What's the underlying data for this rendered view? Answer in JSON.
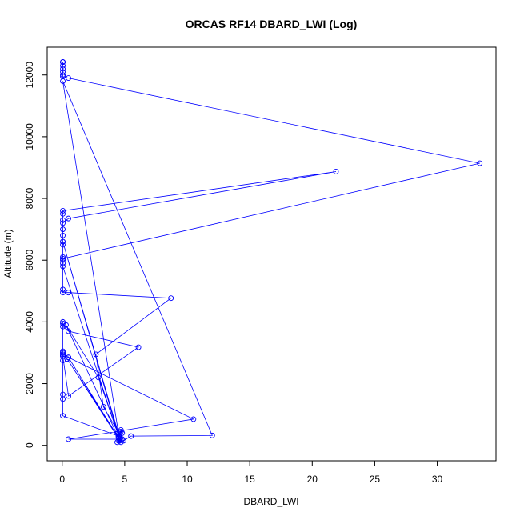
{
  "chart_data": {
    "type": "line",
    "title": "ORCAS RF14 DBARD_LWI (Log)",
    "xlabel": "DBARD_LWI",
    "ylabel": "Altitude (m)",
    "xlim": [
      -1.2,
      34.7
    ],
    "ylim": [
      -500,
      12900
    ],
    "xticks": [
      0,
      5,
      10,
      15,
      20,
      25,
      30
    ],
    "yticks": [
      0,
      2000,
      4000,
      6000,
      8000,
      10000,
      12000
    ],
    "grid": false,
    "legend": "none",
    "color": "#0000ff",
    "series": [
      {
        "x": [
          0.05,
          0.05,
          0.05,
          0.05,
          0.05,
          0.05,
          0.05,
          0.05,
          0.5,
          33.4,
          0.05,
          0.05,
          0.05,
          0.05,
          0.05,
          0.05,
          0.05,
          0.05,
          0.5,
          21.9,
          0.05,
          0.05,
          0.05,
          0.05,
          0.05,
          0.05,
          0.5,
          8.7,
          2.7,
          3.3,
          4.6,
          4.4,
          4.6,
          4.8,
          4.7,
          4.5,
          0.05,
          0.05,
          0.05,
          0.05,
          0.05,
          0.05,
          0.05,
          0.05,
          0.5,
          6.1,
          0.5,
          0.05,
          0.05,
          0.05,
          0.05,
          0.05,
          0.05,
          0.5,
          10.5,
          0.5,
          4.8,
          4.5,
          4.6,
          4.7,
          4.9,
          5.5,
          12.0,
          0.05,
          4.6,
          0.5,
          4.5,
          0.3,
          2.9,
          4.6,
          0.4,
          4.7,
          0.05,
          4.5,
          0.05
        ],
        "y": [
          12420,
          12420,
          12420,
          12300,
          12200,
          12100,
          12000,
          11950,
          11900,
          9140,
          6050,
          6000,
          6100,
          6500,
          6600,
          6800,
          7000,
          7200,
          7350,
          8870,
          7600,
          7500,
          7300,
          5900,
          5050,
          4950,
          4950,
          4770,
          2950,
          1250,
          350,
          100,
          150,
          400,
          500,
          300,
          960,
          1500,
          1650,
          2750,
          2900,
          3000,
          3050,
          3850,
          3700,
          3180,
          1600,
          2900,
          3000,
          3950,
          4000,
          2950,
          2900,
          2850,
          850,
          200,
          200,
          150,
          300,
          450,
          150,
          300,
          320,
          11800,
          150,
          2850,
          250,
          3900,
          2200,
          200,
          2800,
          100,
          6600,
          300,
          5800
        ]
      }
    ]
  }
}
